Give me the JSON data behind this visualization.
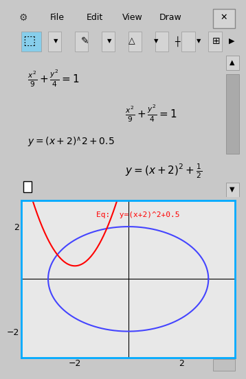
{
  "title_bar": "File  Edit  View  Draw",
  "gear_icon": "⚙",
  "close_icon": "X",
  "formula1_text": "$\\frac{x^2}{9}+\\frac{y^2}{4}=1$",
  "formula2_text": "$y=(x+2)\\hat{}2+0.5$",
  "formula3_text": "$\\frac{x^2}{9}+\\frac{y^2}{4}=1$",
  "formula4_text": "$y=(x+2)^{2}+\\frac{1}{2}$",
  "eq_label": "Eq:  y=(x+2)^2+0.5",
  "bg_top": "#f0f0f0",
  "bg_plot": "#e8e8e8",
  "border_color": "#00aaff",
  "ellipse_color": "#4444ff",
  "parabola_color": "#ff0000",
  "axis_color": "#000000",
  "tick_label_color": "#000000",
  "eq_label_color": "#ff0000",
  "toolbar_bg": "#d4d4d4",
  "toolbar_active": "#87ceeb",
  "xlim": [
    -4,
    4
  ],
  "ylim": [
    -3,
    3
  ],
  "xticks": [
    -2,
    2
  ],
  "yticks": [
    -2,
    2
  ],
  "ellipse_a": 3,
  "ellipse_b": 2
}
